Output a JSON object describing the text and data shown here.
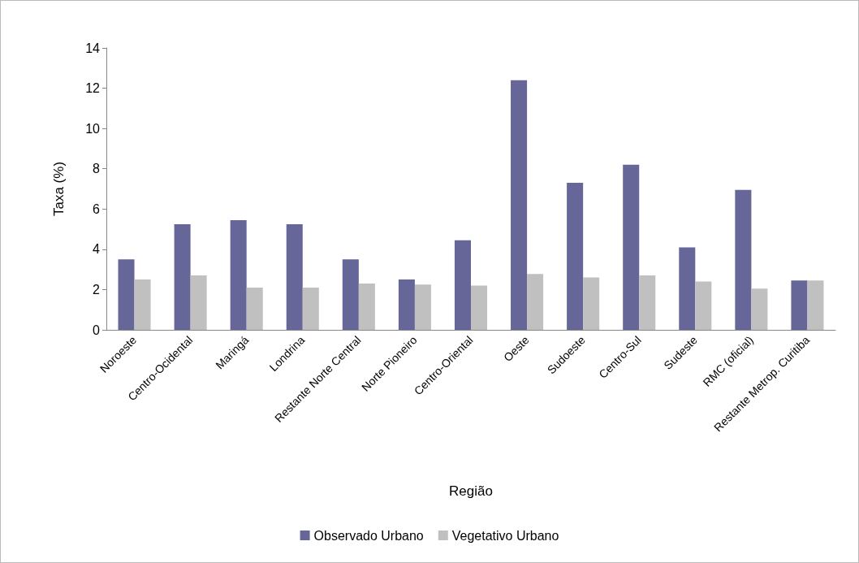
{
  "chart_data": {
    "type": "bar",
    "xlabel": "Região",
    "ylabel": "Taxa (%)",
    "categories": [
      "Noroeste",
      "Centro-Ocidental",
      "Maringá",
      "Londrina",
      "Restante Norte Central",
      "Norte Pioneiro",
      "Centro-Oriental",
      "Oeste",
      "Sudoeste",
      "Centro-Sul",
      "Sudeste",
      "RMC (oficial)",
      "Restante Metrop. Curitiba"
    ],
    "series": [
      {
        "name": "Observado Urbano",
        "color": "#666699",
        "values": [
          3.5,
          5.25,
          5.45,
          5.25,
          3.5,
          2.5,
          4.45,
          12.4,
          7.3,
          8.2,
          4.1,
          6.95,
          2.45
        ]
      },
      {
        "name": "Vegetativo Urbano",
        "color": "#c0c0c0",
        "values": [
          2.5,
          2.7,
          2.1,
          2.1,
          2.3,
          2.25,
          2.2,
          2.77,
          2.6,
          2.7,
          2.4,
          2.05,
          2.45
        ]
      }
    ],
    "ylim": [
      0,
      14
    ],
    "yticks": [
      0,
      2,
      4,
      6,
      8,
      10,
      12,
      14
    ],
    "grid": false,
    "legend": "bottom"
  }
}
